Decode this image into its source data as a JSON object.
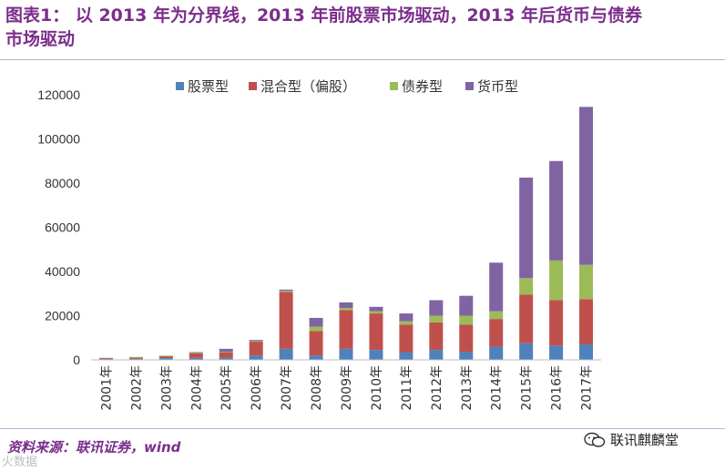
{
  "header": {
    "title_line1": "图表1：  以 2013 年为分界线，2013 年前股票市场驱动，2013 年后货币与债券",
    "title_line2": "市场驱动"
  },
  "footer": {
    "source": "资料来源：联讯证券，wind",
    "watermark": "联讯麒麟堂",
    "corner_watermark": "火数据"
  },
  "colors": {
    "title": "#7b2d8b",
    "stock": "#4f81bd",
    "mixed": "#c0504d",
    "bond": "#9bbb59",
    "money": "#8064a2"
  },
  "chart_data": {
    "type": "bar",
    "stacked": true,
    "title": "",
    "xlabel": "",
    "ylabel": "",
    "ylim": [
      0,
      120000
    ],
    "yticks": [
      0,
      20000,
      40000,
      60000,
      80000,
      100000,
      120000
    ],
    "ytick_labels": [
      "0",
      "20000",
      "40000",
      "60000",
      "80000",
      "100000",
      "120000"
    ],
    "legend_position": "top",
    "categories": [
      "2001年",
      "2002年",
      "2003年",
      "2004年",
      "2005年",
      "2006年",
      "2007年",
      "2008年",
      "2009年",
      "2010年",
      "2011年",
      "2012年",
      "2013年",
      "2014年",
      "2015年",
      "2016年",
      "2017年"
    ],
    "series": [
      {
        "name": "股票型",
        "color": "#4f81bd",
        "values": [
          500,
          500,
          800,
          900,
          1000,
          2000,
          5000,
          2000,
          5000,
          4500,
          3500,
          4500,
          3700,
          6000,
          7500,
          6500,
          7000
        ]
      },
      {
        "name": "混合型（偏股）",
        "color": "#c0504d",
        "values": [
          400,
          700,
          1000,
          2100,
          2500,
          6300,
          25800,
          11000,
          17500,
          16500,
          12500,
          12500,
          12300,
          12500,
          22000,
          20500,
          20500
        ]
      },
      {
        "name": "债券型",
        "color": "#9bbb59",
        "values": [
          0,
          100,
          100,
          200,
          200,
          200,
          500,
          2000,
          1000,
          1000,
          1500,
          3000,
          4000,
          3500,
          7500,
          18000,
          15500
        ]
      },
      {
        "name": "货币型",
        "color": "#8064a2",
        "values": [
          0,
          0,
          0,
          300,
          1300,
          500,
          500,
          4000,
          2500,
          2000,
          3500,
          7000,
          9000,
          22000,
          45500,
          45000,
          71500
        ]
      }
    ]
  }
}
